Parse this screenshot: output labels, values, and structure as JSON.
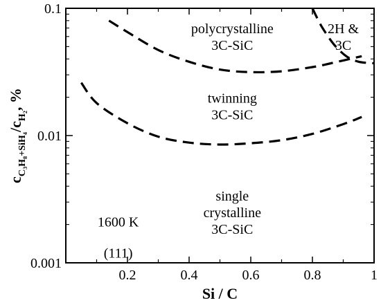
{
  "chart_data": {
    "type": "line",
    "xlabel": "Si / C",
    "ylabel": {
      "prefix": "c",
      "sub": "C₃H₈+SiH₄",
      "mid": "/c",
      "sub2": "H₂",
      "suffix": ", %"
    },
    "xlim": [
      0,
      1
    ],
    "ylim": [
      0.001,
      0.1
    ],
    "yscale": "log",
    "grid": false,
    "x_ticks": [
      {
        "value": 0.2,
        "label": "0.2"
      },
      {
        "value": 0.4,
        "label": "0.4"
      },
      {
        "value": 0.6,
        "label": "0.6"
      },
      {
        "value": 0.8,
        "label": "0.8"
      },
      {
        "value": 1.0,
        "label": "1"
      }
    ],
    "y_ticks": [
      {
        "value": 0.1,
        "label": "0.1"
      },
      {
        "value": 0.01,
        "label": "0.01"
      },
      {
        "value": 0.001,
        "label": "0.001"
      }
    ],
    "series": [
      {
        "style": "dashed",
        "x": [
          0.14,
          0.2,
          0.3,
          0.4,
          0.5,
          0.6,
          0.7,
          0.8,
          0.86,
          0.96
        ],
        "y": [
          0.08,
          0.065,
          0.047,
          0.038,
          0.033,
          0.0315,
          0.032,
          0.0345,
          0.037,
          0.042
        ]
      },
      {
        "style": "dashed",
        "x": [
          0.05,
          0.1,
          0.2,
          0.3,
          0.4,
          0.5,
          0.6,
          0.7,
          0.8,
          0.9,
          0.96
        ],
        "y": [
          0.026,
          0.018,
          0.0125,
          0.0098,
          0.0088,
          0.0085,
          0.0087,
          0.0092,
          0.0103,
          0.0123,
          0.014
        ]
      },
      {
        "style": "dashed",
        "x": [
          0.8,
          0.83,
          0.87,
          0.91,
          0.95,
          1.0
        ],
        "y": [
          0.1,
          0.072,
          0.052,
          0.042,
          0.038,
          0.037
        ]
      }
    ],
    "annotations": [
      {
        "lines": [
          "polycrystalline",
          "3C-SiC"
        ],
        "x": 0.54,
        "y": 0.06
      },
      {
        "lines": [
          "2H &",
          "3C"
        ],
        "x": 0.9,
        "y": 0.06
      },
      {
        "lines": [
          "twinning",
          "3C-SiC"
        ],
        "x": 0.54,
        "y": 0.017
      },
      {
        "lines": [
          "single",
          "crystalline",
          "3C-SiC"
        ],
        "x": 0.54,
        "y": 0.0025
      },
      {
        "lines": [
          "1600 K"
        ],
        "x": 0.17,
        "y": 0.0021
      },
      {
        "lines": [
          "(111)"
        ],
        "x": 0.17,
        "y": 0.0012
      }
    ]
  }
}
